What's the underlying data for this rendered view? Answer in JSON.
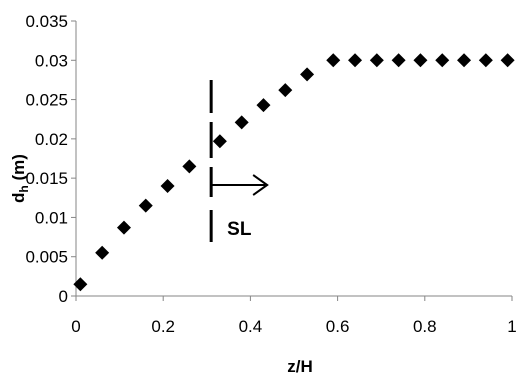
{
  "chart_data": {
    "type": "scatter",
    "marker": "diamond",
    "marker_color": "#000000",
    "xlabel": "z/H",
    "ylabel": "d",
    "ylabel_subscript": "h",
    "ylabel_unit": " (m)",
    "xlim": [
      0,
      1
    ],
    "ylim": [
      0,
      0.035
    ],
    "x_ticks": [
      "0",
      "0.2",
      "0.4",
      "0.6",
      "0.8",
      "1"
    ],
    "y_ticks": [
      "0",
      "0.005",
      "0.01",
      "0.015",
      "0.02",
      "0.025",
      "0.03",
      "0.035"
    ],
    "grid": false,
    "legend": "none",
    "annotations": {
      "divider_x": 0.31,
      "label": "SL",
      "arrow_direction": "right"
    },
    "series": [
      {
        "x": [
          0.01,
          0.06,
          0.11,
          0.16,
          0.21,
          0.26,
          0.33,
          0.38,
          0.43,
          0.48,
          0.53,
          0.59,
          0.64,
          0.69,
          0.74,
          0.79,
          0.84,
          0.89,
          0.94,
          0.99
        ],
        "y": [
          0.0015,
          0.0055,
          0.0087,
          0.0115,
          0.014,
          0.0165,
          0.0197,
          0.0221,
          0.0243,
          0.0262,
          0.0282,
          0.03,
          0.03,
          0.03,
          0.03,
          0.03,
          0.03,
          0.03,
          0.03,
          0.03
        ]
      }
    ]
  }
}
